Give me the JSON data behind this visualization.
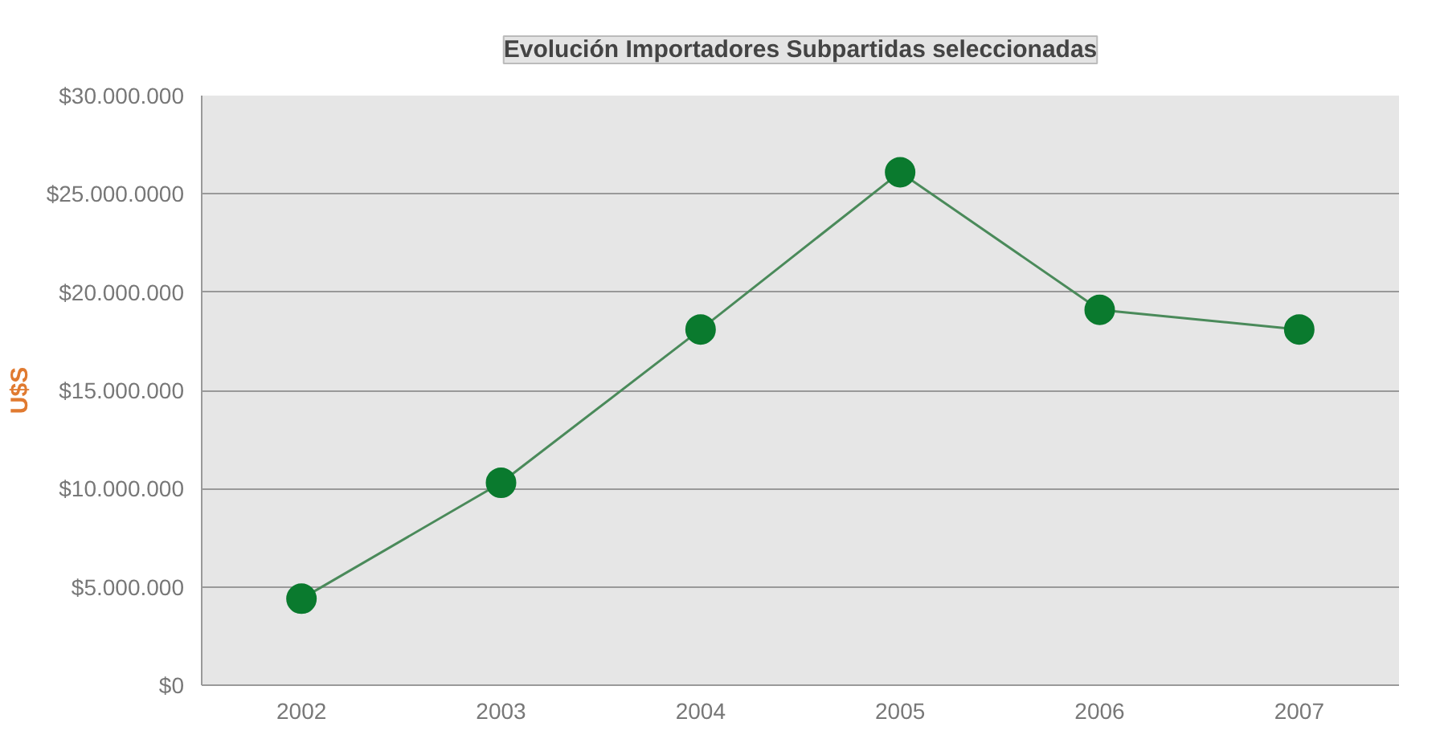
{
  "chart_data": {
    "type": "line",
    "title": "Evolución Importadores Subpartidas seleccionadas",
    "ylabel": "U$S",
    "categories": [
      "2002",
      "2003",
      "2004",
      "2005",
      "2006",
      "2007"
    ],
    "series": [
      {
        "color": "#0a7a2e",
        "values": [
          4400000,
          10300000,
          18100000,
          26100000,
          19100000,
          18100000
        ]
      }
    ],
    "ylim": [
      0,
      30000000
    ],
    "yticks": [
      {
        "value": 0,
        "label": "$0"
      },
      {
        "value": 5000000,
        "label": "$5.000.000"
      },
      {
        "value": 10000000,
        "label": "$10.000.000"
      },
      {
        "value": 15000000,
        "label": "$15.000.000"
      },
      {
        "value": 20000000,
        "label": "$20.000.000"
      },
      {
        "value": 25000000,
        "label": "$25.000.0000"
      },
      {
        "value": 30000000,
        "label": "$30.000.000"
      }
    ],
    "grid": "y",
    "marker": "circle",
    "line_style": "solid"
  }
}
